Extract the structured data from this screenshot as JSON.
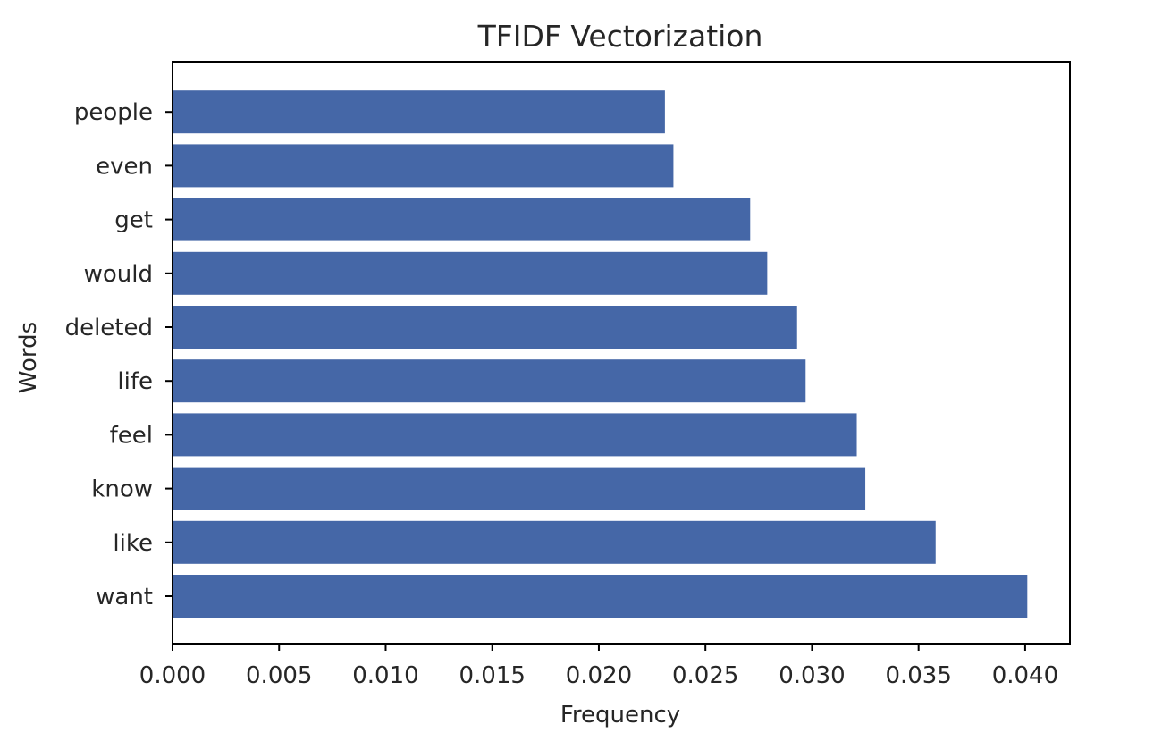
{
  "chart_data": {
    "type": "bar",
    "orientation": "horizontal",
    "title": "TFIDF Vectorization",
    "xlabel": "Frequency",
    "ylabel": "Words",
    "categories": [
      "want",
      "like",
      "know",
      "feel",
      "life",
      "deleted",
      "would",
      "get",
      "even",
      "people"
    ],
    "values": [
      0.0401,
      0.0358,
      0.0325,
      0.0321,
      0.0297,
      0.0293,
      0.0279,
      0.0271,
      0.0235,
      0.0231
    ],
    "xlim": [
      0.0,
      0.0421
    ],
    "xticks": [
      0.0,
      0.005,
      0.01,
      0.015,
      0.02,
      0.025,
      0.03,
      0.035,
      0.04
    ],
    "xtick_labels": [
      "0.000",
      "0.005",
      "0.010",
      "0.015",
      "0.020",
      "0.025",
      "0.030",
      "0.035",
      "0.040"
    ],
    "bar_color": "#4567a7",
    "grid": false,
    "legend": "none"
  }
}
